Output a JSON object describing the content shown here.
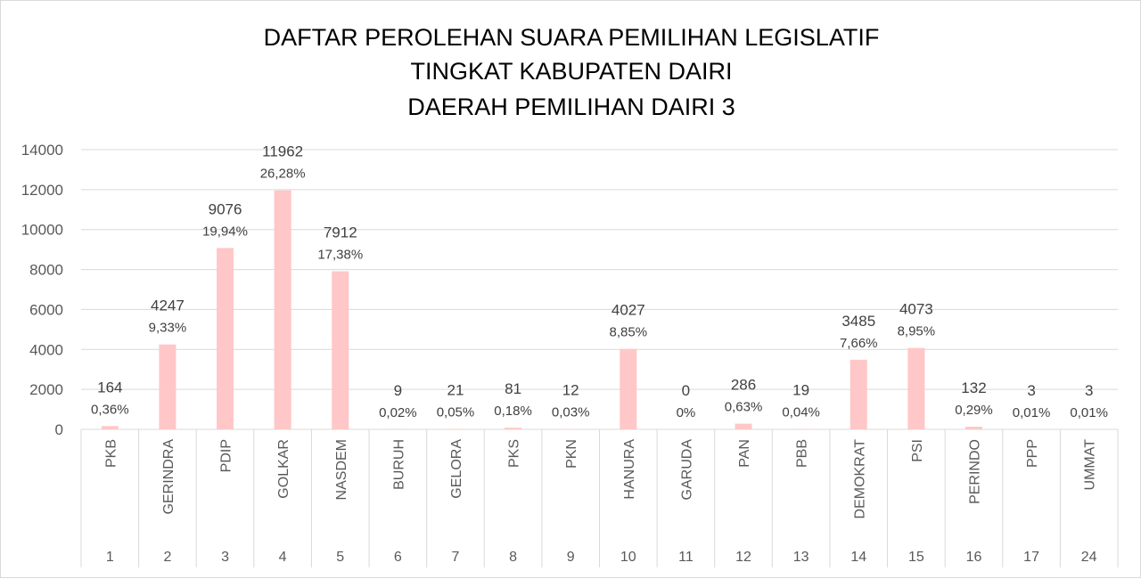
{
  "chart_data": {
    "type": "bar",
    "title": [
      "DAFTAR PEROLEHAN SUARA PEMILIHAN LEGISLATIF",
      "TINGKAT KABUPATEN DAIRI",
      "DAERAH PEMILIHAN DAIRI 3"
    ],
    "categories": [
      "PKB",
      "GERINDRA",
      "PDIP",
      "GOLKAR",
      "NASDEM",
      "BURUH",
      "GELORA",
      "PKS",
      "PKN",
      "HANURA",
      "GARUDA",
      "PAN",
      "PBB",
      "DEMOKRAT",
      "PSI",
      "PERINDO",
      "PPP",
      "UMMAT"
    ],
    "party_numbers": [
      "1",
      "2",
      "3",
      "4",
      "5",
      "6",
      "7",
      "8",
      "9",
      "10",
      "11",
      "12",
      "13",
      "14",
      "15",
      "16",
      "17",
      "24"
    ],
    "values": [
      164,
      4247,
      9076,
      11962,
      7912,
      9,
      21,
      81,
      12,
      4027,
      0,
      286,
      19,
      3485,
      4073,
      132,
      3,
      3
    ],
    "percent_labels": [
      "0,36%",
      "9,33%",
      "19,94%",
      "26,28%",
      "17,38%",
      "0,02%",
      "0,05%",
      "0,18%",
      "0,03%",
      "8,85%",
      "0%",
      "0,63%",
      "0,04%",
      "7,66%",
      "8,95%",
      "0,29%",
      "0,01%",
      "0,01%"
    ],
    "ylim": [
      0,
      14000
    ],
    "yticks": [
      0,
      2000,
      4000,
      6000,
      8000,
      10000,
      12000,
      14000
    ],
    "grid": true,
    "bar_color": "#ffc7c7",
    "grid_color": "#d9d9d9"
  }
}
